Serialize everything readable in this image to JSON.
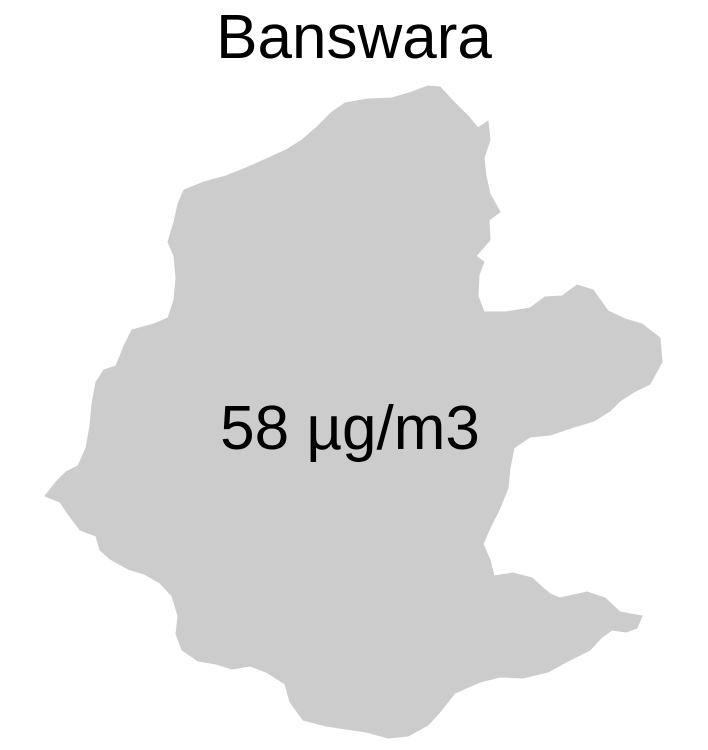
{
  "map": {
    "title": "Banswara",
    "district": {
      "name": "Banswara",
      "value_label": "58 µg/m3",
      "value": 58,
      "unit": "µg/m3",
      "fill_color": "#cccccc"
    },
    "background_color": "#ffffff",
    "text_color": "#000000"
  }
}
